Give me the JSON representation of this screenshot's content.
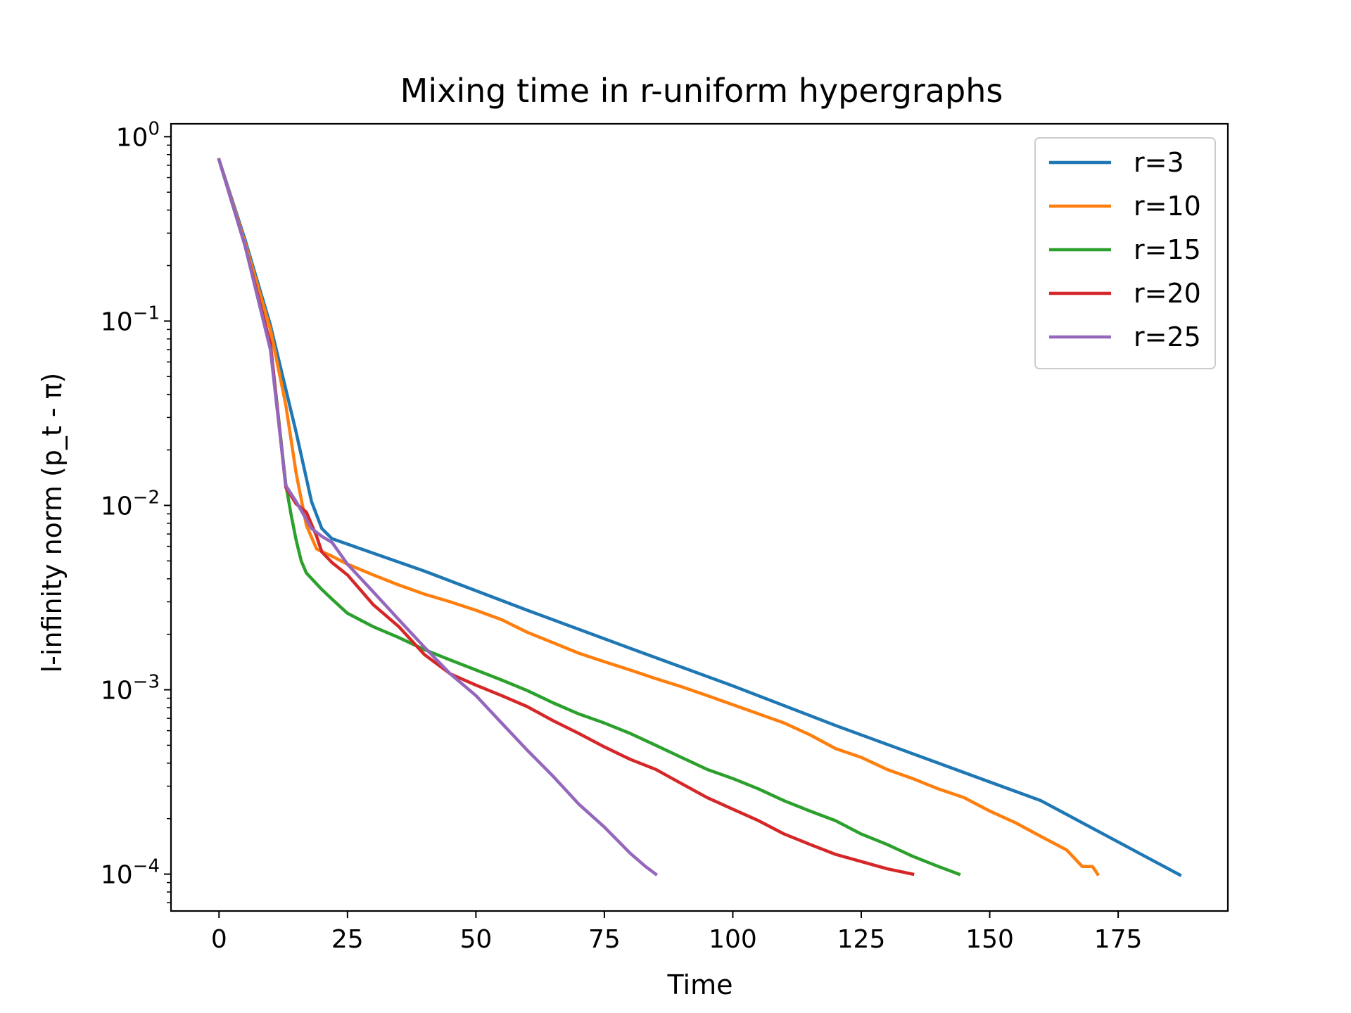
{
  "chart_data": {
    "type": "line",
    "title": "Mixing time in r-uniform hypergraphs",
    "xlabel": "Time",
    "ylabel": "l-infinity norm (p_t - π)",
    "yscale": "log",
    "xlim": [
      -9.35,
      196.35
    ],
    "ylim_log10": [
      -4.2,
      0.07
    ],
    "xticks": [
      0,
      25,
      50,
      75,
      100,
      125,
      150,
      175
    ],
    "yticks": [
      {
        "exp": 0,
        "base": "10",
        "sup": "0"
      },
      {
        "exp": -1,
        "base": "10",
        "sup": "−1"
      },
      {
        "exp": -2,
        "base": "10",
        "sup": "−2"
      },
      {
        "exp": -3,
        "base": "10",
        "sup": "−3"
      },
      {
        "exp": -4,
        "base": "10",
        "sup": "−4"
      }
    ],
    "grid": false,
    "legend_position": "top-right",
    "series": [
      {
        "name": "r=3",
        "color": "#1f77b4",
        "points": [
          [
            0,
            0.75
          ],
          [
            5,
            0.28
          ],
          [
            10,
            0.095
          ],
          [
            15,
            0.025
          ],
          [
            18,
            0.0105
          ],
          [
            20,
            0.0075
          ],
          [
            22,
            0.0066
          ],
          [
            40,
            0.0044
          ],
          [
            60,
            0.0027
          ],
          [
            80,
            0.00168
          ],
          [
            100,
            0.00105
          ],
          [
            120,
            0.00064
          ],
          [
            140,
            0.0004
          ],
          [
            160,
            0.00025
          ],
          [
            187,
            9.9e-05
          ]
        ]
      },
      {
        "name": "r=10",
        "color": "#ff7f0e",
        "points": [
          [
            0,
            0.75
          ],
          [
            5,
            0.27
          ],
          [
            10,
            0.09
          ],
          [
            13,
            0.035
          ],
          [
            15,
            0.015
          ],
          [
            17,
            0.0078
          ],
          [
            19,
            0.0058
          ],
          [
            22,
            0.0053
          ],
          [
            25,
            0.0048
          ],
          [
            30,
            0.0042
          ],
          [
            35,
            0.0037
          ],
          [
            40,
            0.0033
          ],
          [
            45,
            0.003
          ],
          [
            50,
            0.0027
          ],
          [
            55,
            0.0024
          ],
          [
            60,
            0.00205
          ],
          [
            65,
            0.0018
          ],
          [
            70,
            0.00158
          ],
          [
            75,
            0.00142
          ],
          [
            80,
            0.00128
          ],
          [
            85,
            0.00115
          ],
          [
            90,
            0.00104
          ],
          [
            95,
            0.00093
          ],
          [
            100,
            0.00083
          ],
          [
            105,
            0.00074
          ],
          [
            110,
            0.00066
          ],
          [
            115,
            0.00057
          ],
          [
            120,
            0.00048
          ],
          [
            125,
            0.00043
          ],
          [
            130,
            0.00037
          ],
          [
            135,
            0.00033
          ],
          [
            140,
            0.00029
          ],
          [
            145,
            0.00026
          ],
          [
            150,
            0.00022
          ],
          [
            155,
            0.00019
          ],
          [
            160,
            0.00016
          ],
          [
            165,
            0.000135
          ],
          [
            168,
            0.00011
          ],
          [
            170,
            0.00011
          ],
          [
            171,
            0.0001
          ]
        ]
      },
      {
        "name": "r=15",
        "color": "#2ca02c",
        "points": [
          [
            0,
            0.75
          ],
          [
            5,
            0.26
          ],
          [
            10,
            0.075
          ],
          [
            13,
            0.013
          ],
          [
            14,
            0.009
          ],
          [
            15,
            0.0065
          ],
          [
            16,
            0.005
          ],
          [
            17,
            0.0043
          ],
          [
            20,
            0.0035
          ],
          [
            22,
            0.0031
          ],
          [
            25,
            0.0026
          ],
          [
            30,
            0.0022
          ],
          [
            35,
            0.00192
          ],
          [
            40,
            0.00165
          ],
          [
            45,
            0.00145
          ],
          [
            50,
            0.00128
          ],
          [
            55,
            0.00113
          ],
          [
            60,
            0.00099
          ],
          [
            65,
            0.00085
          ],
          [
            70,
            0.00074
          ],
          [
            75,
            0.00066
          ],
          [
            80,
            0.00058
          ],
          [
            85,
            0.0005
          ],
          [
            90,
            0.00043
          ],
          [
            95,
            0.00037
          ],
          [
            100,
            0.00033
          ],
          [
            105,
            0.00029
          ],
          [
            110,
            0.00025
          ],
          [
            115,
            0.00022
          ],
          [
            120,
            0.000195
          ],
          [
            125,
            0.000165
          ],
          [
            130,
            0.000145
          ],
          [
            135,
            0.000125
          ],
          [
            140,
            0.00011
          ],
          [
            144,
            0.0001
          ]
        ]
      },
      {
        "name": "r=20",
        "color": "#d62728",
        "points": [
          [
            0,
            0.75
          ],
          [
            5,
            0.26
          ],
          [
            10,
            0.075
          ],
          [
            13,
            0.0125
          ],
          [
            15,
            0.0102
          ],
          [
            17,
            0.0092
          ],
          [
            19,
            0.0068
          ],
          [
            20,
            0.0056
          ],
          [
            22,
            0.0049
          ],
          [
            25,
            0.0042
          ],
          [
            30,
            0.0029
          ],
          [
            35,
            0.0022
          ],
          [
            40,
            0.00155
          ],
          [
            45,
            0.00122
          ],
          [
            50,
            0.00106
          ],
          [
            55,
            0.00093
          ],
          [
            60,
            0.00081
          ],
          [
            65,
            0.00068
          ],
          [
            70,
            0.00058
          ],
          [
            75,
            0.00049
          ],
          [
            80,
            0.00042
          ],
          [
            85,
            0.00037
          ],
          [
            90,
            0.00031
          ],
          [
            95,
            0.00026
          ],
          [
            100,
            0.000225
          ],
          [
            105,
            0.000195
          ],
          [
            110,
            0.000165
          ],
          [
            115,
            0.000145
          ],
          [
            120,
            0.000128
          ],
          [
            125,
            0.000117
          ],
          [
            130,
            0.000107
          ],
          [
            135,
            0.0001
          ]
        ]
      },
      {
        "name": "r=25",
        "color": "#9467bd",
        "points": [
          [
            0,
            0.75
          ],
          [
            5,
            0.26
          ],
          [
            10,
            0.07
          ],
          [
            13,
            0.0128
          ],
          [
            15,
            0.0105
          ],
          [
            18,
            0.0075
          ],
          [
            20,
            0.0068
          ],
          [
            22,
            0.0063
          ],
          [
            25,
            0.0048
          ],
          [
            30,
            0.0034
          ],
          [
            35,
            0.0024
          ],
          [
            40,
            0.0017
          ],
          [
            45,
            0.00122
          ],
          [
            50,
            0.00093
          ],
          [
            55,
            0.00066
          ],
          [
            60,
            0.00047
          ],
          [
            65,
            0.00034
          ],
          [
            70,
            0.00024
          ],
          [
            75,
            0.00018
          ],
          [
            80,
            0.00013
          ],
          [
            83,
            0.00011
          ],
          [
            85,
            0.0001
          ]
        ]
      }
    ]
  }
}
